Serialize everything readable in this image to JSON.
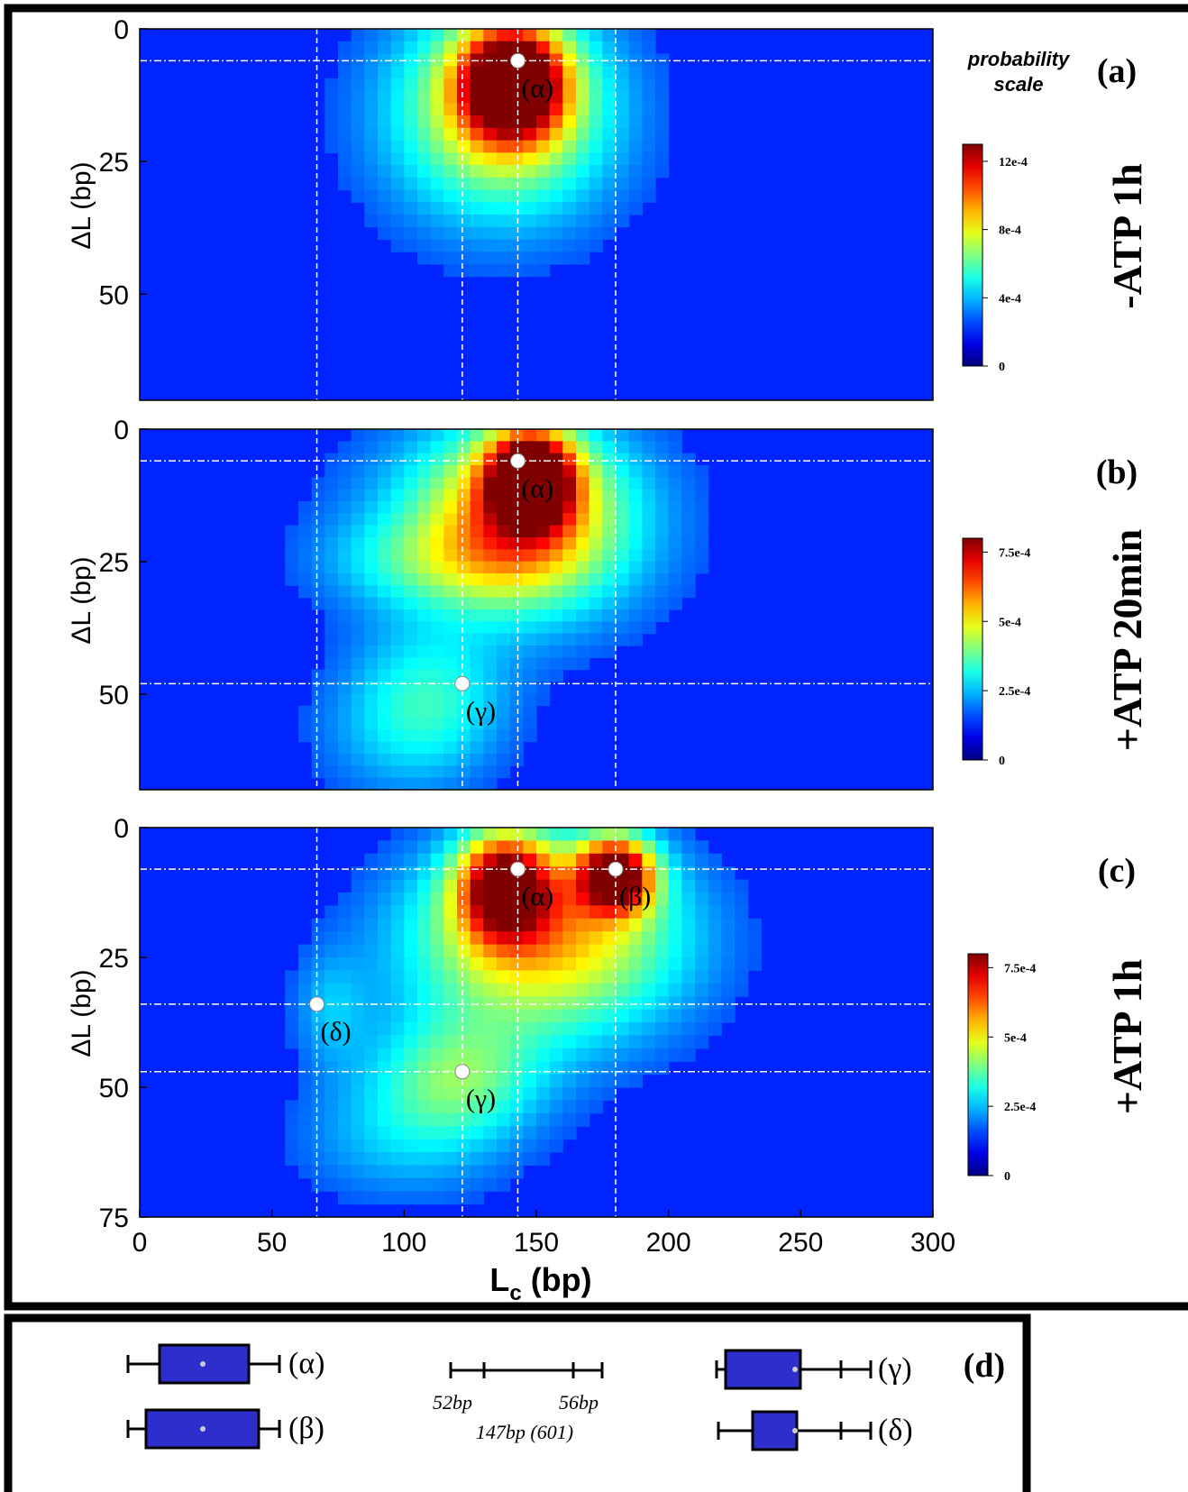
{
  "chart_data": [
    {
      "type": "heatmap",
      "panel_label": "(a)",
      "condition": "-ATP 1h",
      "xlabel": "",
      "ylabel": "ΔL (bp)",
      "xlim": [
        0,
        300
      ],
      "ylim": [
        0,
        70
      ],
      "y_ticks": [
        "0",
        "25",
        "50"
      ],
      "colorbar": {
        "title_lines": [
          "probability",
          "scale"
        ],
        "ticks": [
          "0",
          "4e-4",
          "8e-4",
          "12e-4"
        ],
        "max": 0.0013
      },
      "guide_lines": {
        "vertical_x": [
          67,
          122,
          143,
          180
        ],
        "horizontal_y": [
          6
        ]
      },
      "peaks": [
        {
          "label": "(α)",
          "x": 143,
          "y": 6,
          "intensity": 1.0
        }
      ],
      "density_blobs": [
        {
          "x": 141,
          "y": 10,
          "sx": 13,
          "sy": 7,
          "w": 1.0
        },
        {
          "x": 138,
          "y": 14,
          "sx": 26,
          "sy": 13,
          "w": 0.45
        },
        {
          "x": 135,
          "y": 18,
          "sx": 38,
          "sy": 17,
          "w": 0.18
        }
      ]
    },
    {
      "type": "heatmap",
      "panel_label": "(b)",
      "condition": "+ATP 20min",
      "xlabel": "",
      "ylabel": "ΔL (bp)",
      "xlim": [
        0,
        300
      ],
      "ylim": [
        0,
        68
      ],
      "y_ticks": [
        "0",
        "25",
        "50"
      ],
      "colorbar": {
        "title_lines": [],
        "ticks": [
          "0",
          "2.5e-4",
          "5e-4",
          "7.5e-4"
        ],
        "max": 0.0008
      },
      "guide_lines": {
        "vertical_x": [
          67,
          122,
          143,
          180
        ],
        "horizontal_y": [
          6,
          48
        ]
      },
      "peaks": [
        {
          "label": "(α)",
          "x": 143,
          "y": 6,
          "intensity": 1.0
        },
        {
          "label": "(γ)",
          "x": 122,
          "y": 48,
          "intensity": 0.3
        }
      ],
      "density_blobs": [
        {
          "x": 148,
          "y": 9,
          "sx": 11,
          "sy": 6,
          "w": 1.0
        },
        {
          "x": 145,
          "y": 16,
          "sx": 25,
          "sy": 11,
          "w": 0.5
        },
        {
          "x": 140,
          "y": 18,
          "sx": 42,
          "sy": 15,
          "w": 0.28
        },
        {
          "x": 112,
          "y": 25,
          "sx": 30,
          "sy": 6,
          "w": 0.18
        },
        {
          "x": 110,
          "y": 50,
          "sx": 20,
          "sy": 9,
          "w": 0.2
        },
        {
          "x": 100,
          "y": 58,
          "sx": 26,
          "sy": 10,
          "w": 0.15
        }
      ]
    },
    {
      "type": "heatmap",
      "panel_label": "(c)",
      "condition": "+ATP 1h",
      "xlabel": "Lc (bp)",
      "ylabel": "ΔL (bp)",
      "xlim": [
        0,
        300
      ],
      "ylim": [
        0,
        75
      ],
      "x_ticks": [
        "0",
        "50",
        "100",
        "150",
        "200",
        "250",
        "300"
      ],
      "y_ticks": [
        "0",
        "25",
        "50",
        "75"
      ],
      "colorbar": {
        "title_lines": [],
        "ticks": [
          "0",
          "2.5e-4",
          "5e-4",
          "7.5e-4"
        ],
        "max": 0.0008
      },
      "guide_lines": {
        "vertical_x": [
          67,
          122,
          143,
          180
        ],
        "horizontal_y": [
          8,
          34,
          47
        ]
      },
      "peaks": [
        {
          "label": "(α)",
          "x": 143,
          "y": 8,
          "intensity": 0.9
        },
        {
          "label": "(β)",
          "x": 180,
          "y": 8,
          "intensity": 1.0
        },
        {
          "label": "(δ)",
          "x": 67,
          "y": 34,
          "intensity": 0.2
        },
        {
          "label": "(γ)",
          "x": 122,
          "y": 47,
          "intensity": 0.35
        }
      ],
      "density_blobs": [
        {
          "x": 138,
          "y": 11,
          "sx": 12,
          "sy": 7,
          "w": 0.85
        },
        {
          "x": 180,
          "y": 9,
          "sx": 10,
          "sy": 5,
          "w": 0.95
        },
        {
          "x": 155,
          "y": 18,
          "sx": 35,
          "sy": 12,
          "w": 0.45
        },
        {
          "x": 150,
          "y": 28,
          "sx": 40,
          "sy": 14,
          "w": 0.25
        },
        {
          "x": 120,
          "y": 48,
          "sx": 22,
          "sy": 8,
          "w": 0.3
        },
        {
          "x": 100,
          "y": 60,
          "sx": 30,
          "sy": 9,
          "w": 0.18
        },
        {
          "x": 72,
          "y": 35,
          "sx": 10,
          "sy": 8,
          "w": 0.15
        }
      ]
    },
    {
      "type": "box",
      "panel_label": "(d)",
      "boxes": [
        {
          "label": "(α)"
        },
        {
          "label": "(β)"
        },
        {
          "label": "(γ)"
        },
        {
          "label": "(δ)"
        }
      ],
      "reference": {
        "labels": [
          "52bp",
          "56bp",
          "147bp (601)"
        ]
      }
    }
  ]
}
